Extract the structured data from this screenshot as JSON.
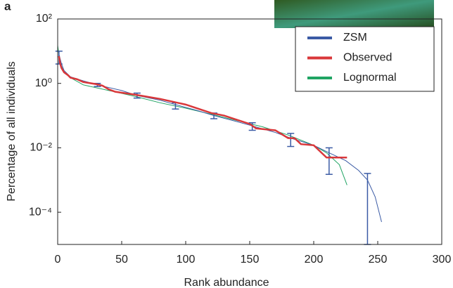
{
  "panel_label": "a",
  "chart_data": {
    "type": "line",
    "x_label": "Rank abundance",
    "y_label": "Percentage of all individuals",
    "y_scale": "log",
    "xlim": [
      0,
      300
    ],
    "xticks": [
      0,
      50,
      100,
      150,
      200,
      250,
      300
    ],
    "ylim": [
      1e-05,
      100
    ],
    "yticks": [
      {
        "value": 0.0001,
        "label": "10⁻⁴"
      },
      {
        "value": 0.01,
        "label": "10⁻²"
      },
      {
        "value": 1,
        "label": "10⁰"
      },
      {
        "value": 100,
        "label": "10²"
      }
    ],
    "legend": "upper right",
    "series": [
      {
        "name": "ZSM",
        "color": "#3b5ba5",
        "x": [
          1,
          3,
          5,
          10,
          20,
          31,
          50,
          62,
          80,
          92,
          110,
          122,
          140,
          152,
          170,
          182,
          200,
          212,
          225,
          235,
          242,
          248,
          253
        ],
        "values": [
          8,
          4,
          2.5,
          1.6,
          1.2,
          0.9,
          0.6,
          0.42,
          0.3,
          0.22,
          0.14,
          0.1,
          0.065,
          0.048,
          0.03,
          0.02,
          0.012,
          0.007,
          0.004,
          0.002,
          0.001,
          0.0003,
          5e-05
        ],
        "error_x": [
          1,
          31,
          62,
          92,
          122,
          152,
          182,
          212,
          242
        ],
        "error_low": [
          4,
          0.8,
          0.35,
          0.16,
          0.08,
          0.035,
          0.011,
          0.0015,
          1e-05
        ],
        "error_high": [
          10,
          1.0,
          0.5,
          0.25,
          0.12,
          0.06,
          0.028,
          0.01,
          0.0016
        ]
      },
      {
        "name": "Observed",
        "color": "#d9373a",
        "x": [
          1,
          2,
          3,
          5,
          8,
          10,
          15,
          20,
          30,
          35,
          40,
          45,
          60,
          80,
          100,
          120,
          130,
          150,
          155,
          170,
          180,
          185,
          190,
          200,
          210,
          226
        ],
        "values": [
          7,
          4,
          3,
          2.2,
          1.8,
          1.5,
          1.35,
          1.1,
          0.95,
          0.85,
          0.65,
          0.55,
          0.45,
          0.33,
          0.22,
          0.12,
          0.1,
          0.055,
          0.04,
          0.035,
          0.02,
          0.02,
          0.013,
          0.012,
          0.005,
          0.005
        ]
      },
      {
        "name": "Lognormal",
        "color": "#1fa463",
        "x": [
          0,
          2,
          5,
          10,
          20,
          40,
          60,
          80,
          100,
          120,
          140,
          160,
          180,
          200,
          210,
          220,
          226
        ],
        "values": [
          15,
          4,
          2.3,
          1.5,
          0.9,
          0.6,
          0.4,
          0.25,
          0.17,
          0.11,
          0.07,
          0.045,
          0.025,
          0.012,
          0.007,
          0.003,
          0.0007
        ]
      }
    ]
  }
}
